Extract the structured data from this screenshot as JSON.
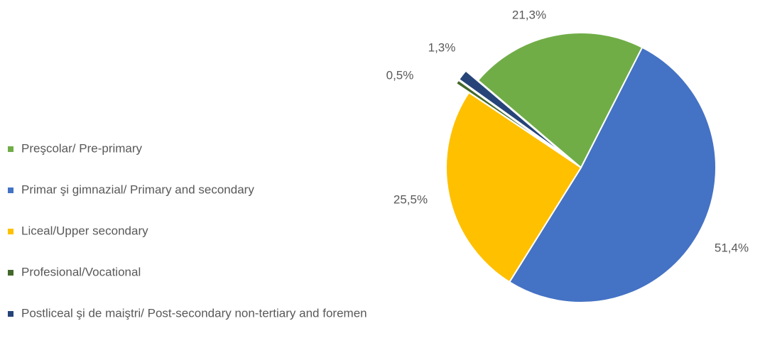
{
  "chart_data": {
    "type": "pie",
    "categories": [
      "Preşcolar/ Pre-primary",
      "Primar şi gimnazial/ Primary and secondary",
      "Liceal/Upper secondary",
      "Profesional/Vocational",
      "Postliceal şi de maiştri/ Post-secondary non-tertiary and foremen"
    ],
    "values": [
      21.3,
      51.4,
      25.5,
      0.5,
      1.3
    ],
    "value_labels": [
      "21,3%",
      "51,4%",
      "25,5%",
      "0,5%",
      "1,3%"
    ],
    "colors": [
      "#70ad47",
      "#4472c4",
      "#ffc000",
      "#43682b",
      "#264478"
    ],
    "legend": "left"
  }
}
